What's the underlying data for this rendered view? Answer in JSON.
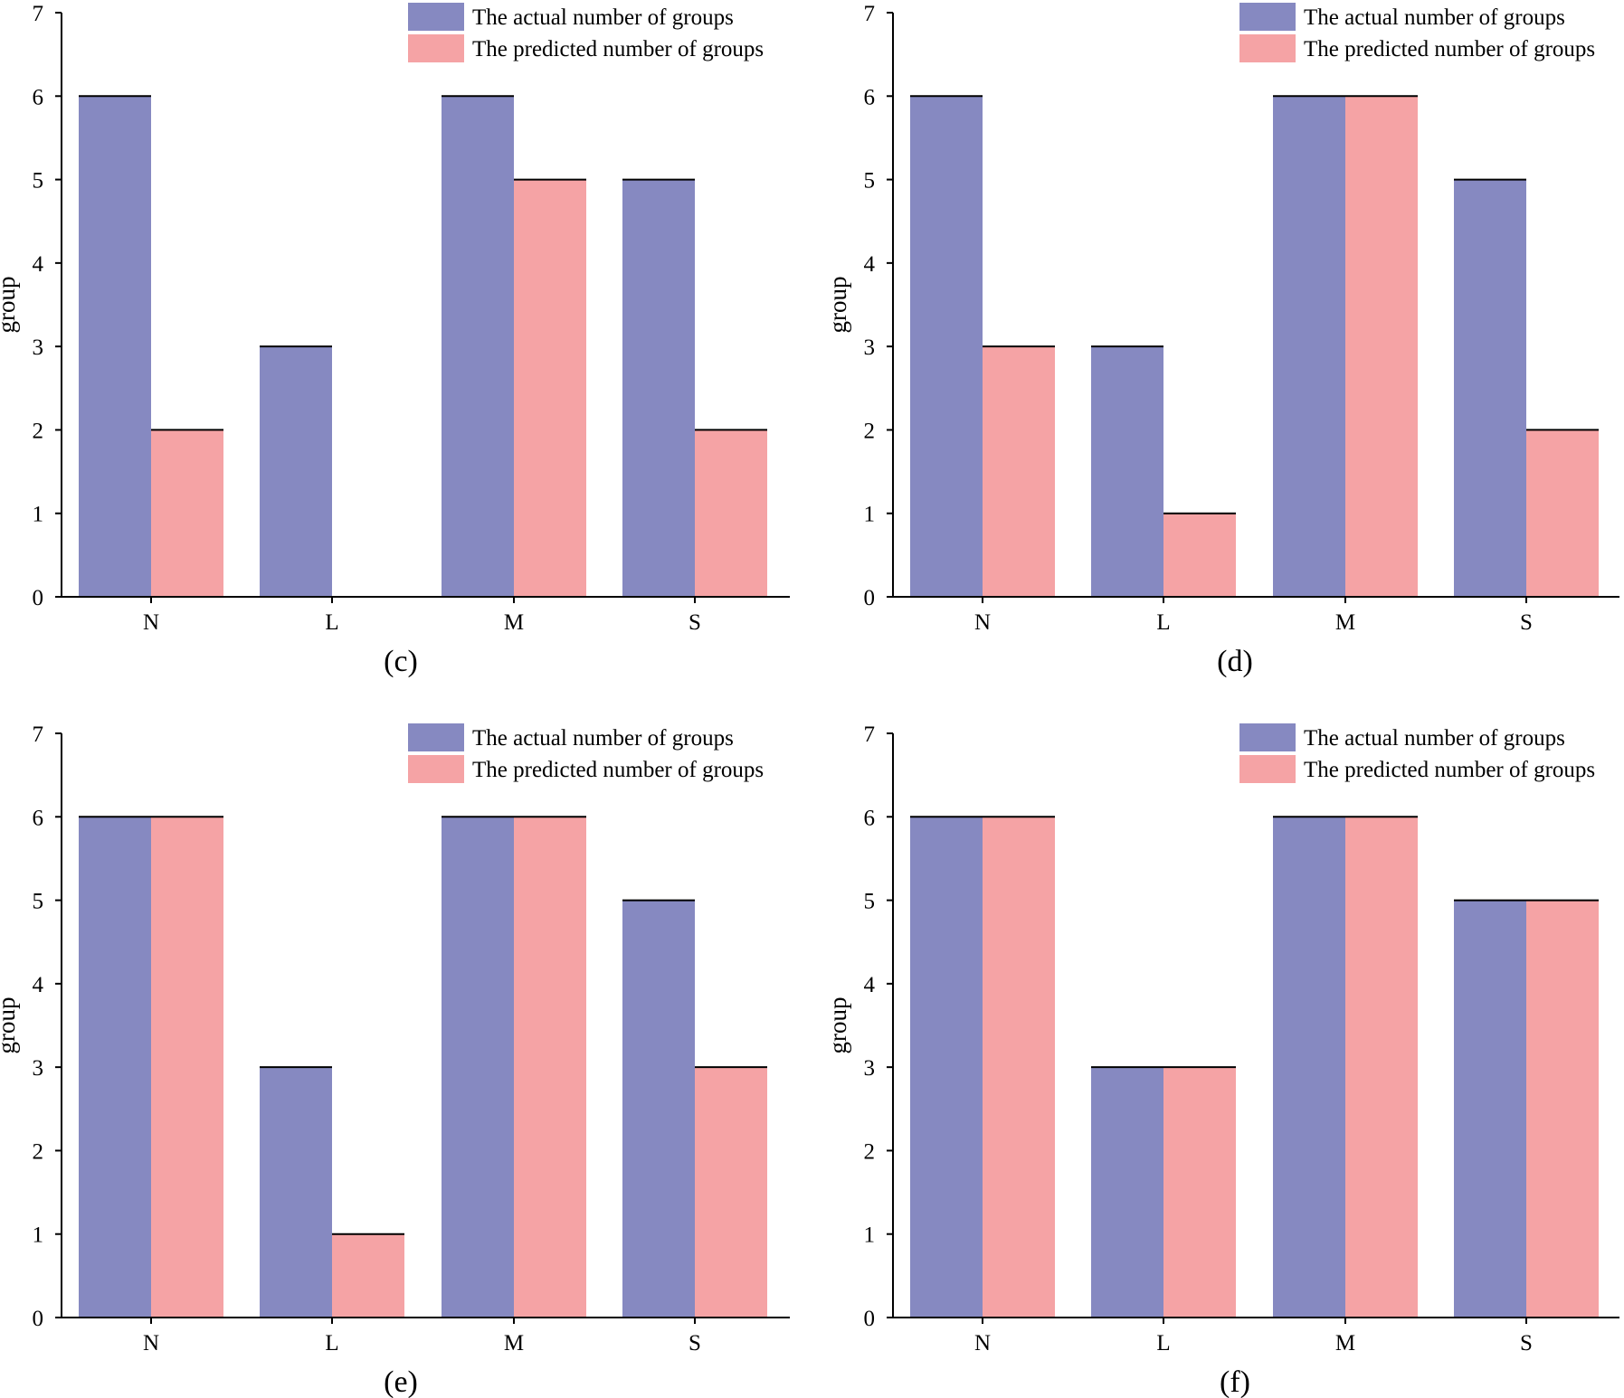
{
  "legend": {
    "actual": "The actual number of groups",
    "predicted": "The predicted number of groups"
  },
  "colors": {
    "actual": "#8689c1",
    "predicted": "#f5a3a5"
  },
  "chart_data": [
    {
      "type": "bar",
      "panel_label": "(c)",
      "categories": [
        "N",
        "L",
        "M",
        "S"
      ],
      "series": [
        {
          "name": "The actual number of groups",
          "values": [
            6,
            3,
            6,
            5
          ]
        },
        {
          "name": "The predicted number of groups",
          "values": [
            2,
            0,
            5,
            2
          ]
        }
      ],
      "ylabel": "group",
      "ylim": [
        0,
        7
      ],
      "yticks": [
        "0",
        "1",
        "2",
        "3",
        "4",
        "5",
        "6",
        "7"
      ],
      "legend_position": "top-right"
    },
    {
      "type": "bar",
      "panel_label": "(d)",
      "categories": [
        "N",
        "L",
        "M",
        "S"
      ],
      "series": [
        {
          "name": "The actual number of groups",
          "values": [
            6,
            3,
            6,
            5
          ]
        },
        {
          "name": "The predicted number of groups",
          "values": [
            3,
            1,
            6,
            2
          ]
        }
      ],
      "ylabel": "group",
      "ylim": [
        0,
        7
      ],
      "yticks": [
        "0",
        "1",
        "2",
        "3",
        "4",
        "5",
        "6",
        "7"
      ],
      "legend_position": "top-right"
    },
    {
      "type": "bar",
      "panel_label": "(e)",
      "categories": [
        "N",
        "L",
        "M",
        "S"
      ],
      "series": [
        {
          "name": "The actual number of groups",
          "values": [
            6,
            3,
            6,
            5
          ]
        },
        {
          "name": "The predicted number of groups",
          "values": [
            6,
            1,
            6,
            3
          ]
        }
      ],
      "ylabel": "group",
      "ylim": [
        0,
        7
      ],
      "yticks": [
        "0",
        "1",
        "2",
        "3",
        "4",
        "5",
        "6",
        "7"
      ],
      "legend_position": "top-right"
    },
    {
      "type": "bar",
      "panel_label": "(f)",
      "categories": [
        "N",
        "L",
        "M",
        "S"
      ],
      "series": [
        {
          "name": "The actual number of groups",
          "values": [
            6,
            3,
            6,
            5
          ]
        },
        {
          "name": "The predicted number of groups",
          "values": [
            6,
            3,
            6,
            5
          ]
        }
      ],
      "ylabel": "group",
      "ylim": [
        0,
        7
      ],
      "yticks": [
        "0",
        "1",
        "2",
        "3",
        "4",
        "5",
        "6",
        "7"
      ],
      "legend_position": "top-right"
    }
  ]
}
